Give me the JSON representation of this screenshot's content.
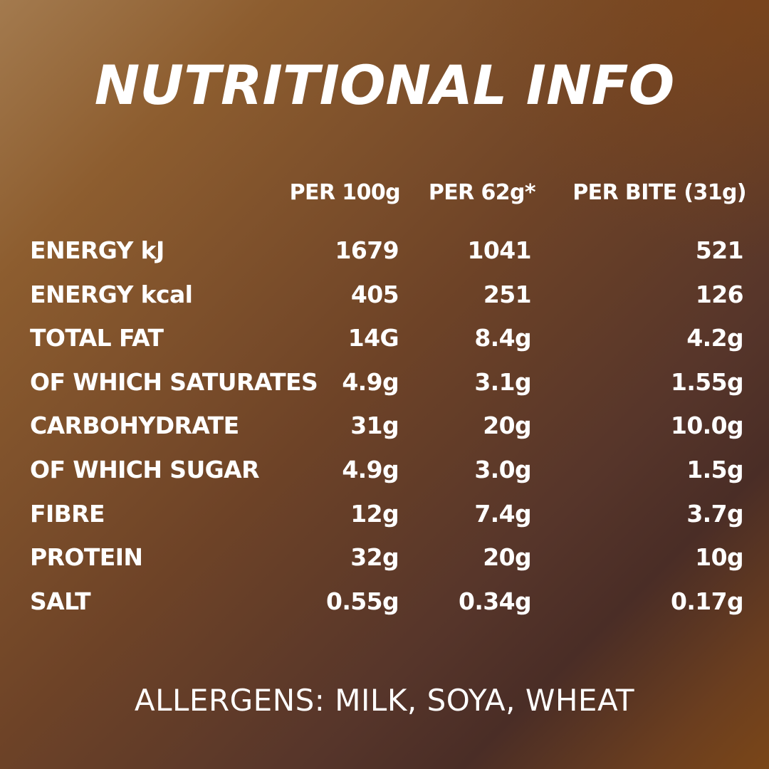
{
  "title": "NUTRITIONAL INFO",
  "columns": [
    "PER 100g",
    "PER 62g*",
    "PER BITE (31g)"
  ],
  "rows": [
    {
      "label": "ENERGY kJ",
      "values": [
        "1679",
        "1041",
        "521"
      ]
    },
    {
      "label": "ENERGY kcal",
      "values": [
        "405",
        "251",
        "126"
      ]
    },
    {
      "label": "TOTAL FAT",
      "values": [
        "14G",
        "8.4g",
        "4.2g"
      ]
    },
    {
      "label": "OF WHICH SATURATES",
      "values": [
        "4.9g",
        "3.1g",
        "1.55g"
      ]
    },
    {
      "label": "CARBOHYDRATE",
      "values": [
        "31g",
        "20g",
        "10.0g"
      ]
    },
    {
      "label": "OF WHICH SUGAR",
      "values": [
        "4.9g",
        "3.0g",
        "1.5g"
      ]
    },
    {
      "label": "FIBRE",
      "values": [
        "12g",
        "7.4g",
        "3.7g"
      ]
    },
    {
      "label": "PROTEIN",
      "values": [
        "32g",
        "20g",
        "10g"
      ]
    },
    {
      "label": "SALT",
      "values": [
        "0.55g",
        "0.34g",
        "0.17g"
      ]
    }
  ],
  "allergens": "ALLERGENS: MILK, SOYA, WHEAT",
  "colors": {
    "background_light": "#a37a4e",
    "background_dark": "#4a2d26",
    "background_accent": "#7a4618",
    "text": "#ffffff"
  }
}
